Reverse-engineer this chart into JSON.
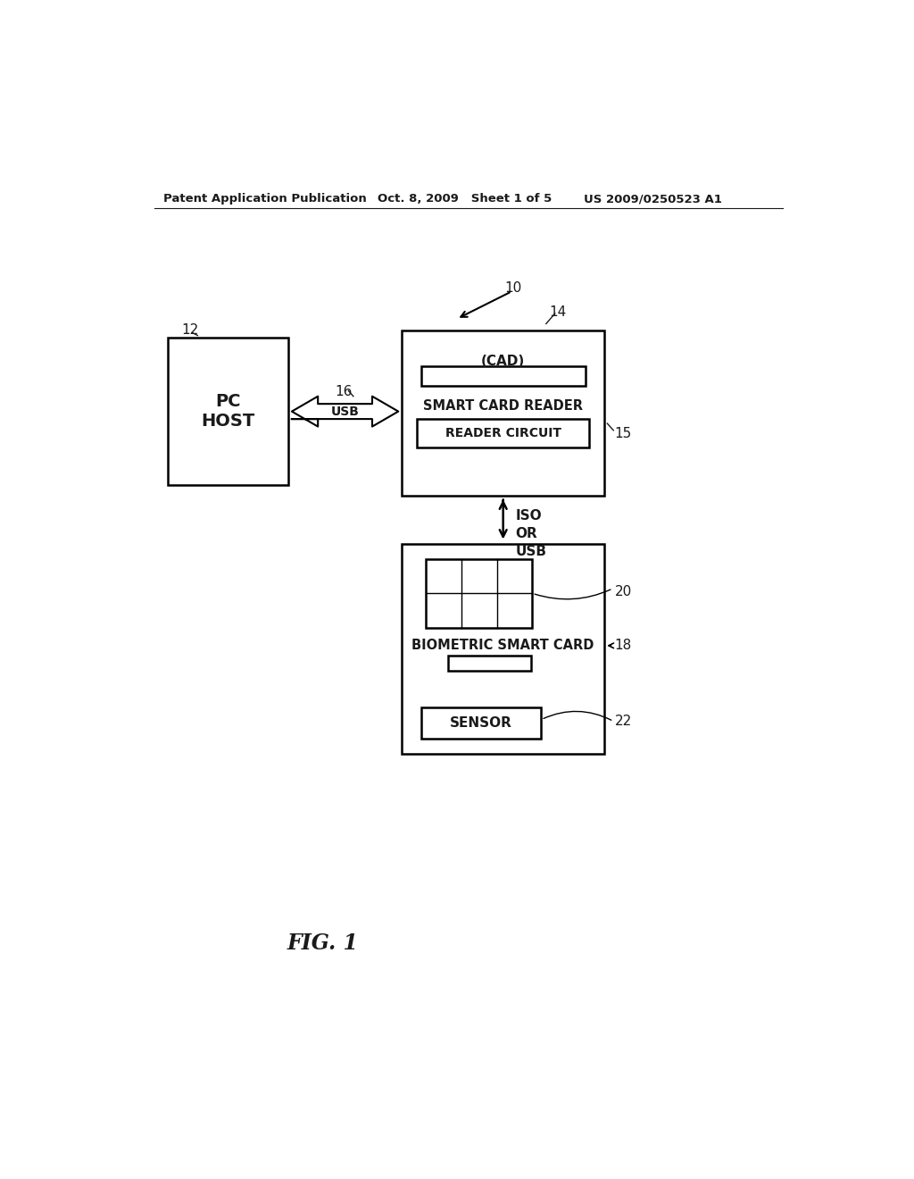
{
  "bg_color": "#ffffff",
  "header_left": "Patent Application Publication",
  "header_mid": "Oct. 8, 2009   Sheet 1 of 5",
  "header_right": "US 2009/0250523 A1",
  "fig_label": "FIG. 1",
  "label_10": "10",
  "label_12": "12",
  "label_14": "14",
  "label_15": "15",
  "label_16": "16",
  "label_18": "18",
  "label_20": "20",
  "label_22": "22",
  "pc_host_label": "PC\nHOST",
  "usb_label": "USB",
  "cad_label": "(CAD)",
  "smart_card_reader_label": "SMART CARD READER",
  "reader_circuit_label": "READER CIRCUIT",
  "iso_or_usb_label": "ISO\nOR\nUSB",
  "biometric_smart_card_label": "BIOMETRIC SMART CARD",
  "sensor_label": "SENSOR",
  "text_color": "#1a1a1a",
  "lw": 1.8
}
